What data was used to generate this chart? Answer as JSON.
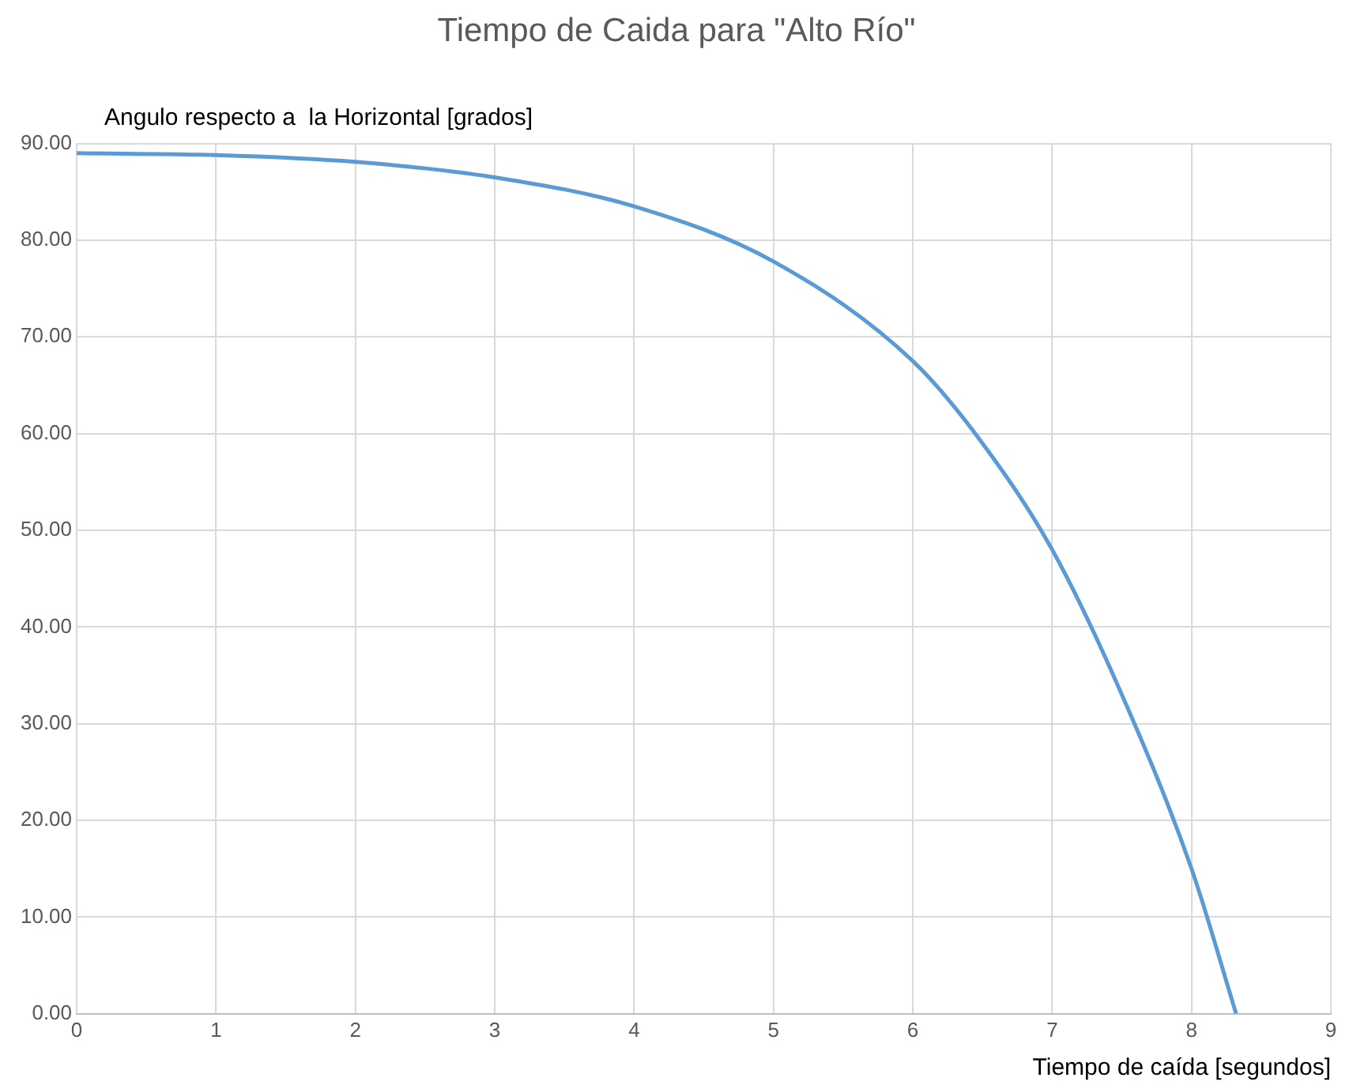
{
  "chart_data": {
    "type": "line",
    "title": "Tiempo de Caida para \"Alto Río\"",
    "xlabel": "Tiempo de caída [segundos]",
    "ylabel": "Angulo respecto a  la Horizontal [grados]",
    "series": [
      {
        "color": "#5b9bd5",
        "x": [
          0,
          1,
          2,
          3,
          4,
          5,
          6,
          6.5,
          7,
          7.5,
          8,
          8.32
        ],
        "values": [
          89,
          88.8,
          88.1,
          86.5,
          83.5,
          77.8,
          67.5,
          59,
          48,
          33,
          15,
          0
        ]
      }
    ],
    "xlim": [
      0,
      9
    ],
    "xticks": [
      0,
      1,
      2,
      3,
      4,
      5,
      6,
      7,
      8,
      9
    ],
    "ylim": [
      0,
      90
    ],
    "yticks": [
      {
        "value": 0,
        "label": "0.00"
      },
      {
        "value": 10,
        "label": "10.00"
      },
      {
        "value": 20,
        "label": "20.00"
      },
      {
        "value": 30,
        "label": "30.00"
      },
      {
        "value": 40,
        "label": "40.00"
      },
      {
        "value": 50,
        "label": "50.00"
      },
      {
        "value": 60,
        "label": "60.00"
      },
      {
        "value": 70,
        "label": "70.00"
      },
      {
        "value": 80,
        "label": "80.00"
      },
      {
        "value": 90,
        "label": "90.00"
      }
    ],
    "grid": true,
    "legend": false,
    "marker": "none",
    "line_style": "solid"
  }
}
